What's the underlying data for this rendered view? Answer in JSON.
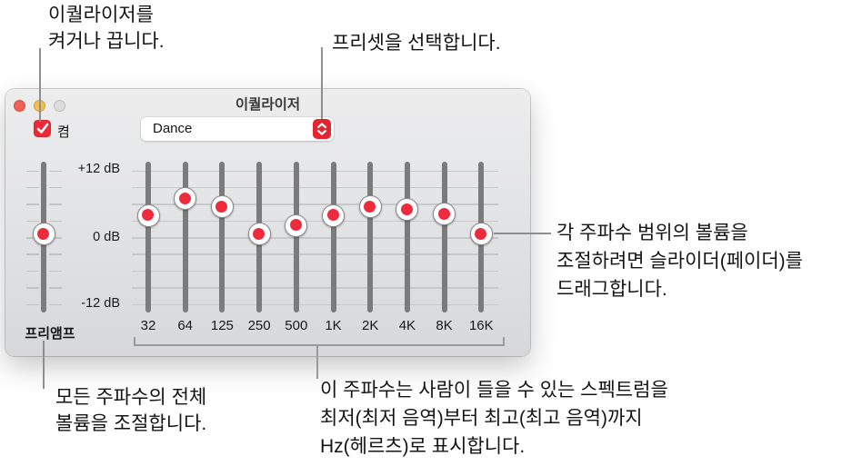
{
  "callouts": {
    "toggle": {
      "lines": [
        "이퀄라이저를",
        "켜거나 끕니다."
      ]
    },
    "preset": {
      "lines": [
        "프리셋을 선택합니다."
      ]
    },
    "faders": {
      "lines": [
        "각 주파수 범위의 볼륨을",
        "조절하려면 슬라이더(페이더)를",
        "드래그합니다."
      ]
    },
    "preamp": {
      "lines": [
        "모든 주파수의 전체",
        "볼륨을 조절합니다."
      ]
    },
    "frequencies": {
      "lines": [
        "이 주파수는 사람이 들을 수 있는 스펙트럼을",
        "최저(최저 음역)부터 최고(최고 음역)까지",
        "Hz(헤르츠)로 표시합니다."
      ]
    }
  },
  "window": {
    "title": "이퀄라이저",
    "on_checkbox_label": "켬",
    "on_checkbox_checked": true,
    "preset_value": "Dance",
    "preamp_label": "프리앰프",
    "db_axis_labels": [
      "+12 dB",
      "0 dB",
      "-12 dB"
    ]
  },
  "equalizer": {
    "db_range": [
      -12,
      12
    ],
    "preamp_db": 0.5,
    "bands": [
      {
        "label": "32",
        "db": 3.9
      },
      {
        "label": "64",
        "db": 6.9
      },
      {
        "label": "125",
        "db": 5.4
      },
      {
        "label": "250",
        "db": 0.5
      },
      {
        "label": "500",
        "db": 2.1
      },
      {
        "label": "1K",
        "db": 3.9
      },
      {
        "label": "2K",
        "db": 5.4
      },
      {
        "label": "4K",
        "db": 4.9
      },
      {
        "label": "8K",
        "db": 4.1
      },
      {
        "label": "16K",
        "db": 0.5
      }
    ]
  },
  "icons": {
    "checkbox": "check-icon",
    "preset": "up-down-chevron-icon"
  },
  "colors": {
    "accent_red": "#ed2839",
    "slider_dot_red": "#ee2b3d",
    "traffic_close": "#f35e57",
    "traffic_minimize": "#f5bd4f",
    "traffic_zoom_disabled": "#dcdcdc",
    "leader_line": "#8f8f8f"
  }
}
